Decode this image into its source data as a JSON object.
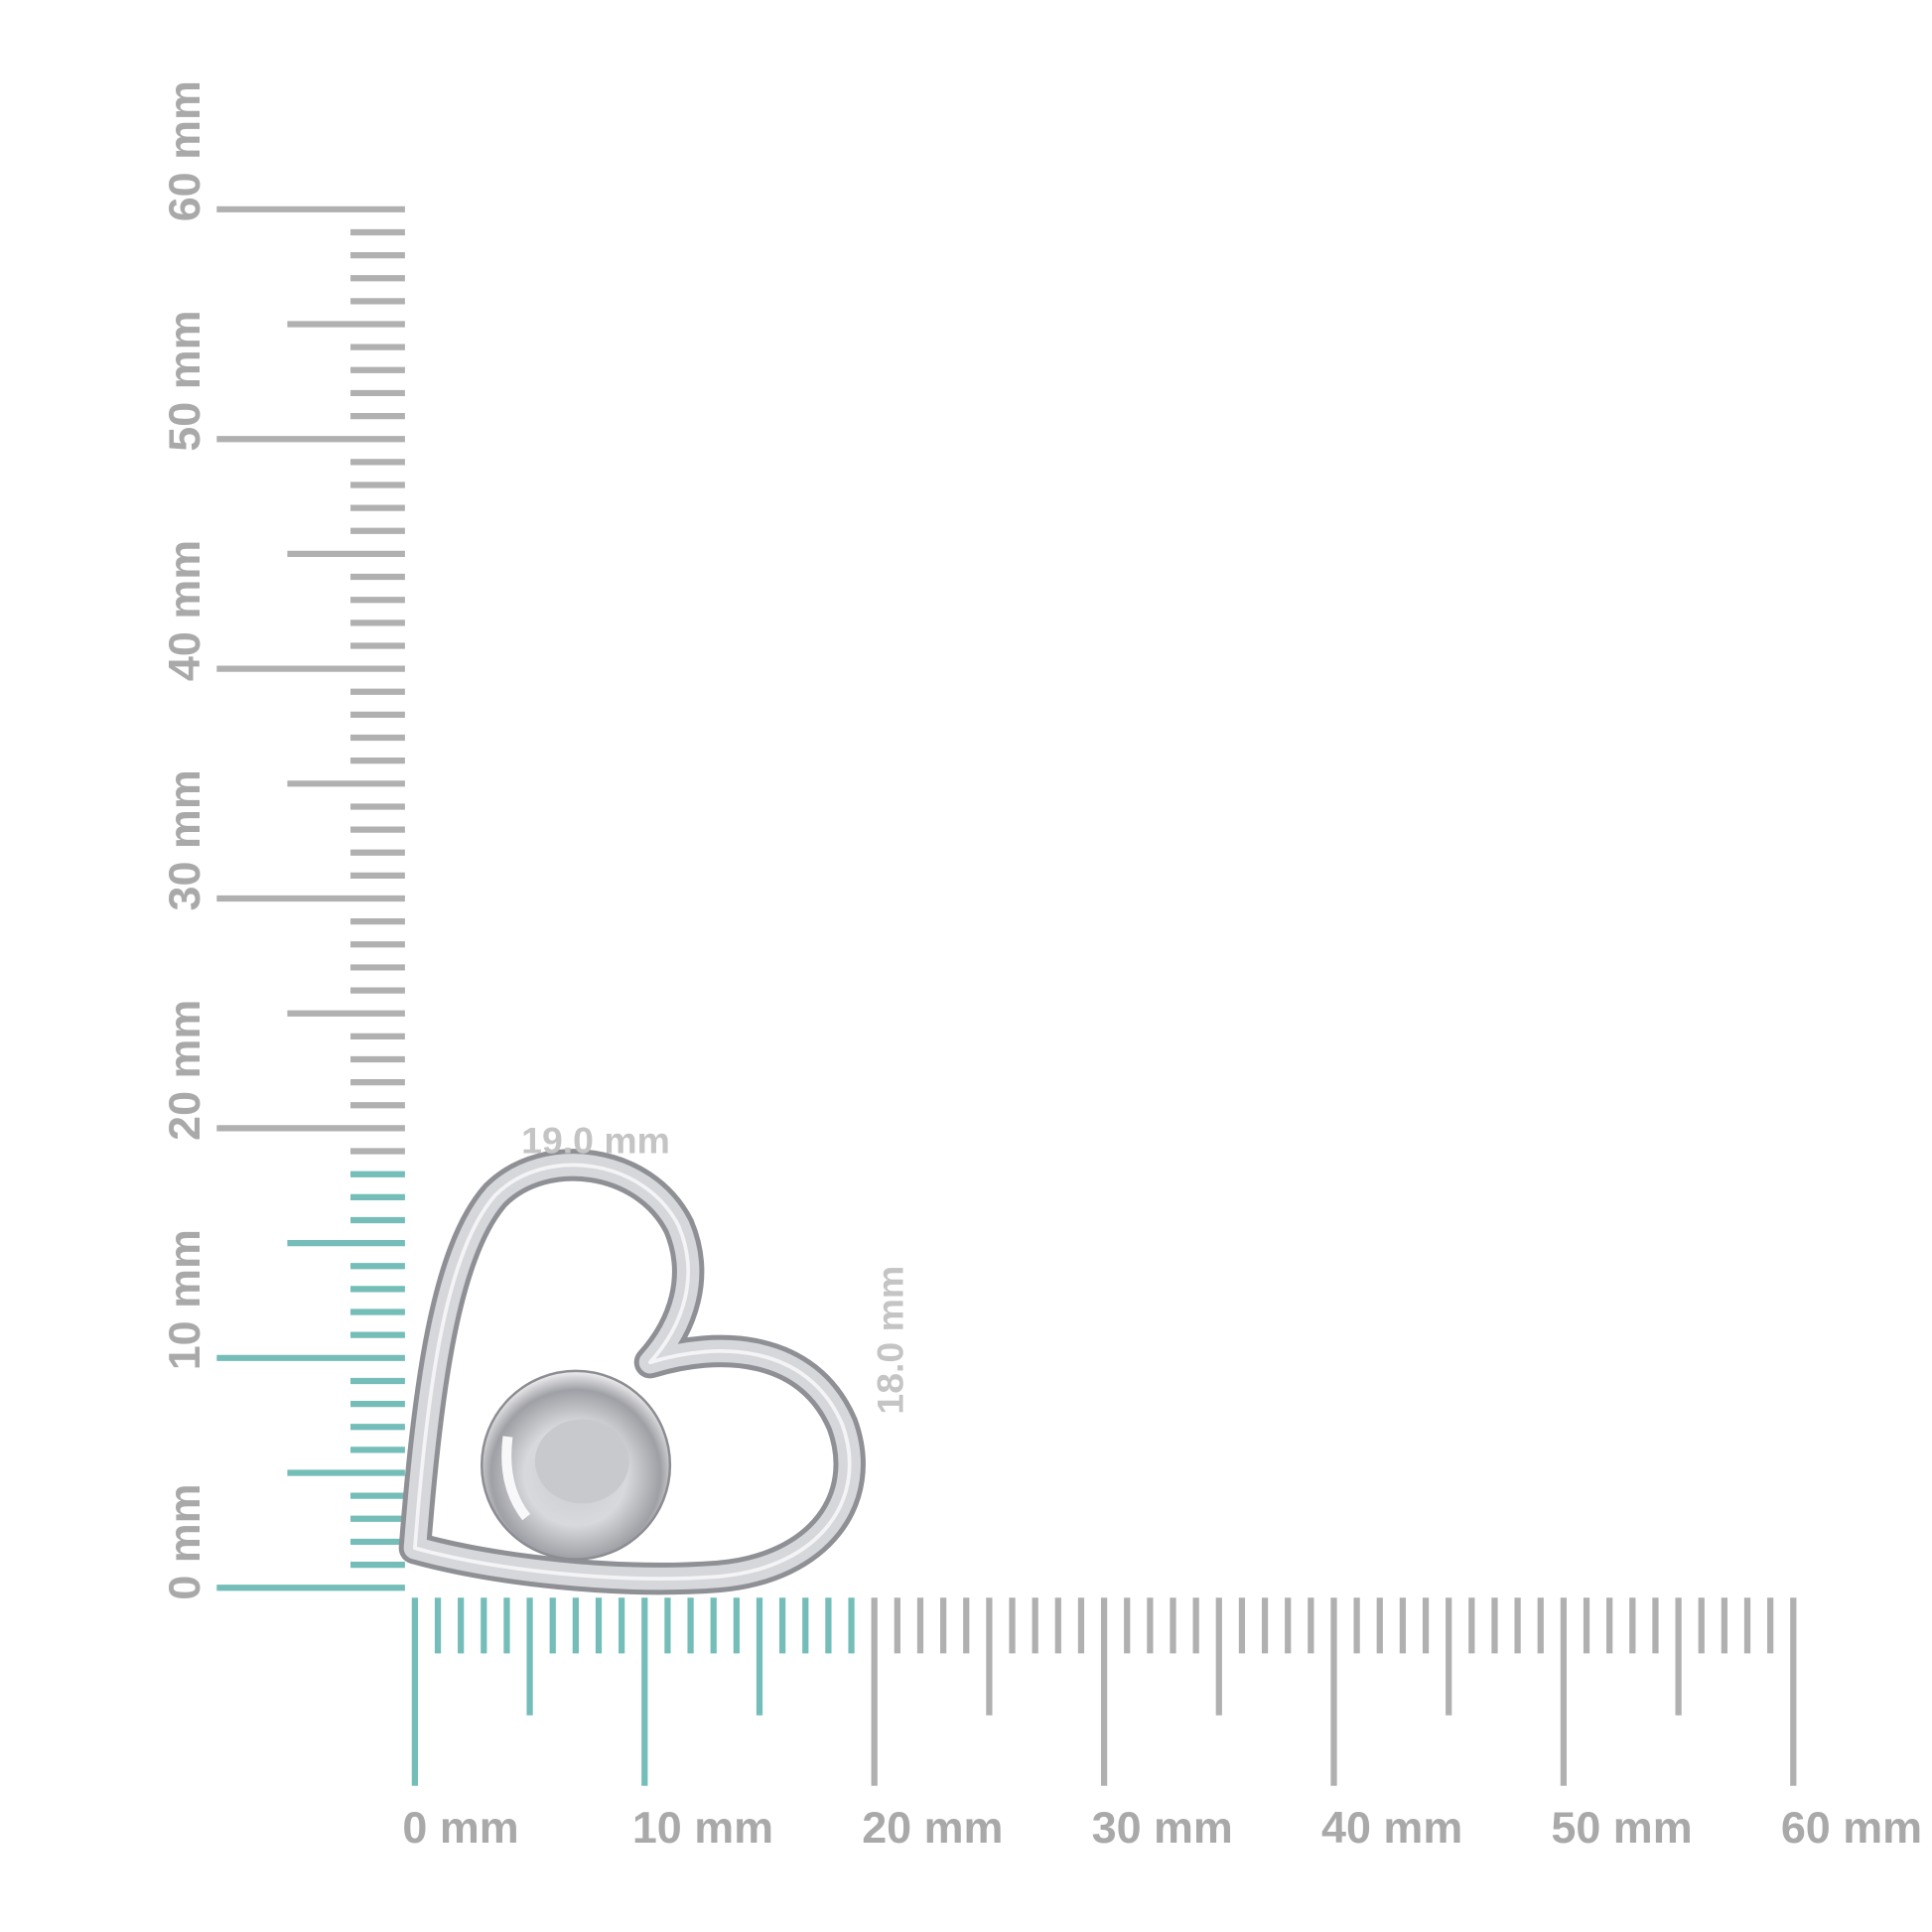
{
  "rulers": {
    "horizontal": {
      "range_mm": [
        0,
        60
      ],
      "highlight_mm": 19,
      "labels": [
        "0 mm",
        "10 mm",
        "20 mm",
        "30 mm",
        "40 mm",
        "50 mm",
        "60 mm"
      ]
    },
    "vertical": {
      "range_mm": [
        0,
        60
      ],
      "highlight_mm": 18,
      "labels": [
        "0 mm",
        "10 mm",
        "20 mm",
        "30 mm",
        "40 mm",
        "50 mm",
        "60 mm"
      ]
    },
    "colors": {
      "highlight": "#74bdb8",
      "normal": "#b0b0b0"
    }
  },
  "product": {
    "name_icon": "heart-pendant-with-ball",
    "width_label": "19.0 mm",
    "height_label": "18.0 mm"
  }
}
